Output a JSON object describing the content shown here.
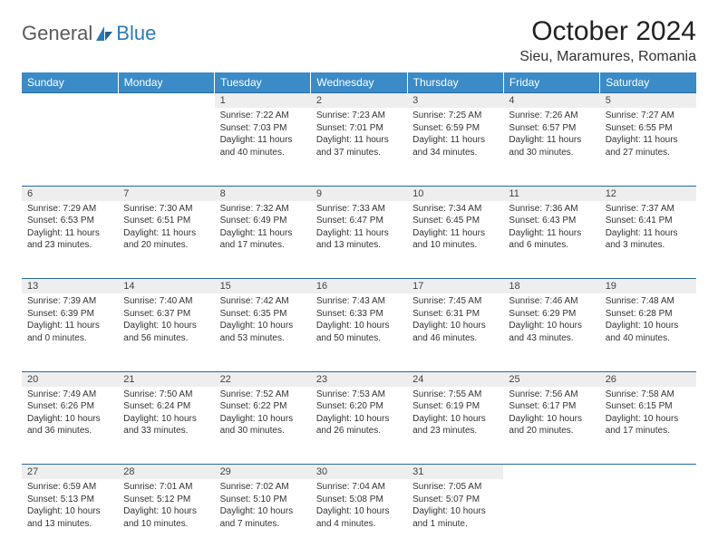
{
  "brand": {
    "part1": "General",
    "part2": "Blue"
  },
  "title": "October 2024",
  "location": "Sieu, Maramures, Romania",
  "colors": {
    "header_bg": "#3b8bc8",
    "header_text": "#ffffff",
    "daynum_bg": "#eeeeee",
    "rule": "#2a6aa0",
    "logo_blue": "#2a7ab8",
    "logo_gray": "#5a5a5a"
  },
  "weekdays": [
    "Sunday",
    "Monday",
    "Tuesday",
    "Wednesday",
    "Thursday",
    "Friday",
    "Saturday"
  ],
  "weeks": [
    [
      null,
      null,
      {
        "n": "1",
        "sr": "7:22 AM",
        "ss": "7:03 PM",
        "dl": "11 hours and 40 minutes."
      },
      {
        "n": "2",
        "sr": "7:23 AM",
        "ss": "7:01 PM",
        "dl": "11 hours and 37 minutes."
      },
      {
        "n": "3",
        "sr": "7:25 AM",
        "ss": "6:59 PM",
        "dl": "11 hours and 34 minutes."
      },
      {
        "n": "4",
        "sr": "7:26 AM",
        "ss": "6:57 PM",
        "dl": "11 hours and 30 minutes."
      },
      {
        "n": "5",
        "sr": "7:27 AM",
        "ss": "6:55 PM",
        "dl": "11 hours and 27 minutes."
      }
    ],
    [
      {
        "n": "6",
        "sr": "7:29 AM",
        "ss": "6:53 PM",
        "dl": "11 hours and 23 minutes."
      },
      {
        "n": "7",
        "sr": "7:30 AM",
        "ss": "6:51 PM",
        "dl": "11 hours and 20 minutes."
      },
      {
        "n": "8",
        "sr": "7:32 AM",
        "ss": "6:49 PM",
        "dl": "11 hours and 17 minutes."
      },
      {
        "n": "9",
        "sr": "7:33 AM",
        "ss": "6:47 PM",
        "dl": "11 hours and 13 minutes."
      },
      {
        "n": "10",
        "sr": "7:34 AM",
        "ss": "6:45 PM",
        "dl": "11 hours and 10 minutes."
      },
      {
        "n": "11",
        "sr": "7:36 AM",
        "ss": "6:43 PM",
        "dl": "11 hours and 6 minutes."
      },
      {
        "n": "12",
        "sr": "7:37 AM",
        "ss": "6:41 PM",
        "dl": "11 hours and 3 minutes."
      }
    ],
    [
      {
        "n": "13",
        "sr": "7:39 AM",
        "ss": "6:39 PM",
        "dl": "11 hours and 0 minutes."
      },
      {
        "n": "14",
        "sr": "7:40 AM",
        "ss": "6:37 PM",
        "dl": "10 hours and 56 minutes."
      },
      {
        "n": "15",
        "sr": "7:42 AM",
        "ss": "6:35 PM",
        "dl": "10 hours and 53 minutes."
      },
      {
        "n": "16",
        "sr": "7:43 AM",
        "ss": "6:33 PM",
        "dl": "10 hours and 50 minutes."
      },
      {
        "n": "17",
        "sr": "7:45 AM",
        "ss": "6:31 PM",
        "dl": "10 hours and 46 minutes."
      },
      {
        "n": "18",
        "sr": "7:46 AM",
        "ss": "6:29 PM",
        "dl": "10 hours and 43 minutes."
      },
      {
        "n": "19",
        "sr": "7:48 AM",
        "ss": "6:28 PM",
        "dl": "10 hours and 40 minutes."
      }
    ],
    [
      {
        "n": "20",
        "sr": "7:49 AM",
        "ss": "6:26 PM",
        "dl": "10 hours and 36 minutes."
      },
      {
        "n": "21",
        "sr": "7:50 AM",
        "ss": "6:24 PM",
        "dl": "10 hours and 33 minutes."
      },
      {
        "n": "22",
        "sr": "7:52 AM",
        "ss": "6:22 PM",
        "dl": "10 hours and 30 minutes."
      },
      {
        "n": "23",
        "sr": "7:53 AM",
        "ss": "6:20 PM",
        "dl": "10 hours and 26 minutes."
      },
      {
        "n": "24",
        "sr": "7:55 AM",
        "ss": "6:19 PM",
        "dl": "10 hours and 23 minutes."
      },
      {
        "n": "25",
        "sr": "7:56 AM",
        "ss": "6:17 PM",
        "dl": "10 hours and 20 minutes."
      },
      {
        "n": "26",
        "sr": "7:58 AM",
        "ss": "6:15 PM",
        "dl": "10 hours and 17 minutes."
      }
    ],
    [
      {
        "n": "27",
        "sr": "6:59 AM",
        "ss": "5:13 PM",
        "dl": "10 hours and 13 minutes."
      },
      {
        "n": "28",
        "sr": "7:01 AM",
        "ss": "5:12 PM",
        "dl": "10 hours and 10 minutes."
      },
      {
        "n": "29",
        "sr": "7:02 AM",
        "ss": "5:10 PM",
        "dl": "10 hours and 7 minutes."
      },
      {
        "n": "30",
        "sr": "7:04 AM",
        "ss": "5:08 PM",
        "dl": "10 hours and 4 minutes."
      },
      {
        "n": "31",
        "sr": "7:05 AM",
        "ss": "5:07 PM",
        "dl": "10 hours and 1 minute."
      },
      null,
      null
    ]
  ],
  "labels": {
    "sunrise": "Sunrise:",
    "sunset": "Sunset:",
    "daylight": "Daylight:"
  }
}
